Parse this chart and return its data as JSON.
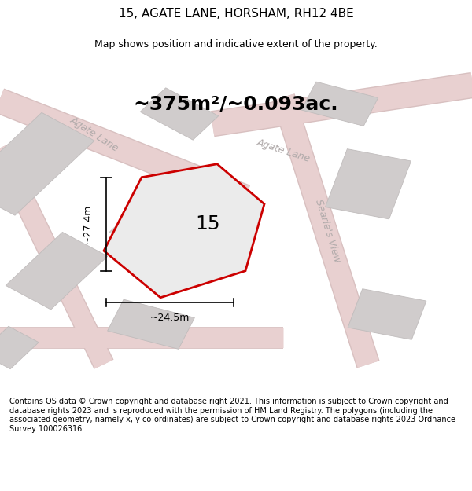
{
  "title": "15, AGATE LANE, HORSHAM, RH12 4BE",
  "subtitle": "Map shows position and indicative extent of the property.",
  "area_text": "~375m²/~0.093ac.",
  "number_label": "15",
  "dim_horiz": "~24.5m",
  "dim_vert": "~27.4m",
  "map_bg": "#f0eeee",
  "street_label_color": "#b0aaaa",
  "plot_outline_color": "#cc0000",
  "plot_fill_color": "#ebebeb",
  "building_fill": "#d0cccc",
  "building_edge": "#c0bcbc",
  "road_fill": "#e8e4e4",
  "road_edge": "#d8d4d4",
  "road_pink": "#e8d0d0",
  "road_pink_edge": "#d8c0c0",
  "footer_text": "Contains OS data © Crown copyright and database right 2021. This information is subject to Crown copyright and database rights 2023 and is reproduced with the permission of HM Land Registry. The polygons (including the associated geometry, namely x, y co-ordinates) are subject to Crown copyright and database rights 2023 Ordnance Survey 100026316.",
  "road_label_1": "Agate Lane",
  "road_label_2": "Agate Lane",
  "road_label_3": "Searle's View",
  "title_fontsize": 11,
  "subtitle_fontsize": 9,
  "area_fontsize": 18,
  "number_fontsize": 18,
  "road_label_fontsize": 9,
  "dim_fontsize": 9,
  "footer_fontsize": 7
}
